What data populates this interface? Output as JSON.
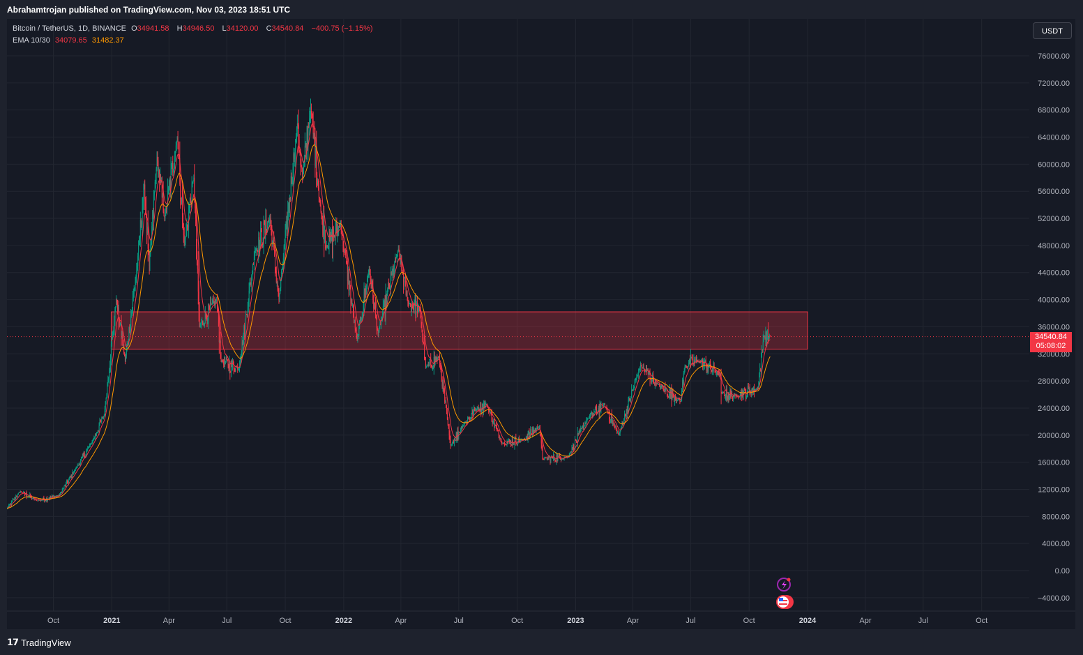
{
  "publisher_line": "Abrahamtrojan published on TradingView.com, Nov 03, 2023 18:51 UTC",
  "legend": {
    "symbol": "Bitcoin / TetherUS, 1D, BINANCE",
    "o_label": "O",
    "o_value": "34941.58",
    "h_label": "H",
    "h_value": "34946.50",
    "l_label": "L",
    "l_value": "34120.00",
    "c_label": "C",
    "c_value": "34540.84",
    "change": "−400.75 (−1.15%)",
    "ema_label": "EMA 10/30",
    "ema_fast": "34079.65",
    "ema_slow": "31482.37"
  },
  "currency_button": "USDT",
  "price_tag": {
    "price": "34540.84",
    "countdown": "05:08:02"
  },
  "footer_brand": "TradingView",
  "colors": {
    "background": "#161a25",
    "grid": "#222631",
    "up": "#089981",
    "down": "#f23645",
    "ema_fast": "#f23645",
    "ema_slow": "#ff9800",
    "zone_fill": "#f23645",
    "text": "#b2b5be"
  },
  "chart_data": {
    "type": "candlestick",
    "title": "Bitcoin / TetherUS, 1D, BINANCE",
    "ylim": [
      -6000,
      80000
    ],
    "y_ticks": [
      76000,
      72000,
      68000,
      64000,
      60000,
      56000,
      52000,
      48000,
      44000,
      40000,
      36000,
      32000,
      28000,
      24000,
      20000,
      16000,
      12000,
      8000,
      4000,
      0,
      -4000
    ],
    "y_tick_labels": [
      "76000.00",
      "72000.00",
      "68000.00",
      "64000.00",
      "60000.00",
      "56000.00",
      "52000.00",
      "48000.00",
      "44000.00",
      "40000.00",
      "36000.00",
      "32000.00",
      "28000.00",
      "24000.00",
      "20000.00",
      "16000.00",
      "12000.00",
      "8000.00",
      "4000.00",
      "0.00",
      "−4000.00"
    ],
    "x_range": [
      "2020-07-20",
      "2024-12-15"
    ],
    "x_ticks": [
      {
        "date": "2020-10-01",
        "label": "Oct",
        "bold": false
      },
      {
        "date": "2021-01-01",
        "label": "2021",
        "bold": true
      },
      {
        "date": "2021-04-01",
        "label": "Apr",
        "bold": false
      },
      {
        "date": "2021-07-01",
        "label": "Jul",
        "bold": false
      },
      {
        "date": "2021-10-01",
        "label": "Oct",
        "bold": false
      },
      {
        "date": "2022-01-01",
        "label": "2022",
        "bold": true
      },
      {
        "date": "2022-04-01",
        "label": "Apr",
        "bold": false
      },
      {
        "date": "2022-07-01",
        "label": "Jul",
        "bold": false
      },
      {
        "date": "2022-10-01",
        "label": "Oct",
        "bold": false
      },
      {
        "date": "2023-01-01",
        "label": "2023",
        "bold": true
      },
      {
        "date": "2023-04-01",
        "label": "Apr",
        "bold": false
      },
      {
        "date": "2023-07-01",
        "label": "Jul",
        "bold": false
      },
      {
        "date": "2023-10-01",
        "label": "Oct",
        "bold": false
      },
      {
        "date": "2024-01-01",
        "label": "2024",
        "bold": true
      },
      {
        "date": "2024-04-01",
        "label": "Apr",
        "bold": false
      },
      {
        "date": "2024-07-01",
        "label": "Jul",
        "bold": false
      },
      {
        "date": "2024-10-01",
        "label": "Oct",
        "bold": false
      }
    ],
    "price_anchors": [
      [
        "2020-07-20",
        9200
      ],
      [
        "2020-08-10",
        11700
      ],
      [
        "2020-09-05",
        10300
      ],
      [
        "2020-10-10",
        11100
      ],
      [
        "2020-11-05",
        15000
      ],
      [
        "2020-12-01",
        19000
      ],
      [
        "2020-12-20",
        23000
      ],
      [
        "2021-01-08",
        40000
      ],
      [
        "2021-01-22",
        31000
      ],
      [
        "2021-02-10",
        45000
      ],
      [
        "2021-02-21",
        57000
      ],
      [
        "2021-03-01",
        45000
      ],
      [
        "2021-03-13",
        61000
      ],
      [
        "2021-03-25",
        52000
      ],
      [
        "2021-04-14",
        64000
      ],
      [
        "2021-04-25",
        48000
      ],
      [
        "2021-05-10",
        58000
      ],
      [
        "2021-05-19",
        36000
      ],
      [
        "2021-06-15",
        40000
      ],
      [
        "2021-06-22",
        31000
      ],
      [
        "2021-07-20",
        29800
      ],
      [
        "2021-08-14",
        47000
      ],
      [
        "2021-09-07",
        52000
      ],
      [
        "2021-09-21",
        40000
      ],
      [
        "2021-10-20",
        66000
      ],
      [
        "2021-10-28",
        58000
      ],
      [
        "2021-11-10",
        68500
      ],
      [
        "2021-11-26",
        53000
      ],
      [
        "2021-12-04",
        48000
      ],
      [
        "2021-12-27",
        51000
      ],
      [
        "2022-01-22",
        34000
      ],
      [
        "2022-02-10",
        44500
      ],
      [
        "2022-02-24",
        35000
      ],
      [
        "2022-03-28",
        47500
      ],
      [
        "2022-04-12",
        39500
      ],
      [
        "2022-05-01",
        38500
      ],
      [
        "2022-05-10",
        30000
      ],
      [
        "2022-05-31",
        31500
      ],
      [
        "2022-06-18",
        18500
      ],
      [
        "2022-07-08",
        21500
      ],
      [
        "2022-07-30",
        24000
      ],
      [
        "2022-08-14",
        24500
      ],
      [
        "2022-09-07",
        18800
      ],
      [
        "2022-10-10",
        19300
      ],
      [
        "2022-11-05",
        21300
      ],
      [
        "2022-11-10",
        16500
      ],
      [
        "2022-12-20",
        16800
      ],
      [
        "2023-01-20",
        22500
      ],
      [
        "2023-02-15",
        24500
      ],
      [
        "2023-03-10",
        20000
      ],
      [
        "2023-04-13",
        30300
      ],
      [
        "2023-05-10",
        27500
      ],
      [
        "2023-06-15",
        25000
      ],
      [
        "2023-06-22",
        30200
      ],
      [
        "2023-07-13",
        31000
      ],
      [
        "2023-08-16",
        29000
      ],
      [
        "2023-08-18",
        26200
      ],
      [
        "2023-09-10",
        25800
      ],
      [
        "2023-10-15",
        26900
      ],
      [
        "2023-10-24",
        34500
      ],
      [
        "2023-11-03",
        34540
      ]
    ],
    "ema_10_last": 34079.65,
    "ema_30_last": 31482.37,
    "last_price": 34540.84,
    "zone": {
      "x_start": "2020-12-31",
      "x_end": "2024-01-01",
      "y_low": 32700,
      "y_high": 38200
    }
  }
}
